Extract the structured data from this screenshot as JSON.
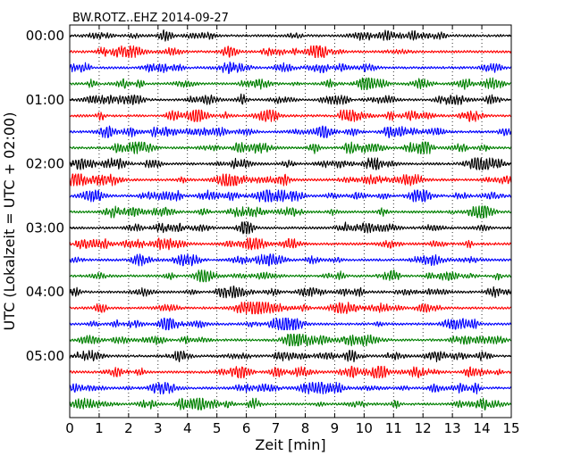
{
  "chart_data": {
    "type": "line",
    "title": "BW.ROTZ..EHZ 2014-09-27",
    "xlabel": "Zeit  [min]",
    "ylabel": "UTC (Lokalzeit = UTC + 02:00)",
    "xlim": [
      0,
      15
    ],
    "x_ticks": [
      0,
      1,
      2,
      3,
      4,
      5,
      6,
      7,
      8,
      9,
      10,
      11,
      12,
      13,
      14,
      15
    ],
    "x_tick_labels": [
      "0",
      "1",
      "2",
      "3",
      "4",
      "5",
      "6",
      "7",
      "8",
      "9",
      "10",
      "11",
      "12",
      "13",
      "14",
      "15"
    ],
    "y_tick_labels": [
      "00:00",
      "01:00",
      "02:00",
      "03:00",
      "04:00",
      "05:00"
    ],
    "grid": true,
    "trace_minutes": 15,
    "color_cycle": [
      "#000000",
      "#ff0000",
      "#0000ff",
      "#008000"
    ],
    "series": [
      {
        "start": "00:00",
        "color": "#000000"
      },
      {
        "start": "00:15",
        "color": "#ff0000"
      },
      {
        "start": "00:30",
        "color": "#0000ff"
      },
      {
        "start": "00:45",
        "color": "#008000"
      },
      {
        "start": "01:00",
        "color": "#000000"
      },
      {
        "start": "01:15",
        "color": "#ff0000"
      },
      {
        "start": "01:30",
        "color": "#0000ff"
      },
      {
        "start": "01:45",
        "color": "#008000"
      },
      {
        "start": "02:00",
        "color": "#000000"
      },
      {
        "start": "02:15",
        "color": "#ff0000"
      },
      {
        "start": "02:30",
        "color": "#0000ff"
      },
      {
        "start": "02:45",
        "color": "#008000"
      },
      {
        "start": "03:00",
        "color": "#000000"
      },
      {
        "start": "03:15",
        "color": "#ff0000"
      },
      {
        "start": "03:30",
        "color": "#0000ff"
      },
      {
        "start": "03:45",
        "color": "#008000"
      },
      {
        "start": "04:00",
        "color": "#000000"
      },
      {
        "start": "04:15",
        "color": "#ff0000"
      },
      {
        "start": "04:30",
        "color": "#0000ff"
      },
      {
        "start": "04:45",
        "color": "#008000"
      },
      {
        "start": "05:00",
        "color": "#000000"
      },
      {
        "start": "05:15",
        "color": "#ff0000"
      },
      {
        "start": "05:30",
        "color": "#0000ff"
      },
      {
        "start": "05:45",
        "color": "#008000"
      }
    ]
  }
}
